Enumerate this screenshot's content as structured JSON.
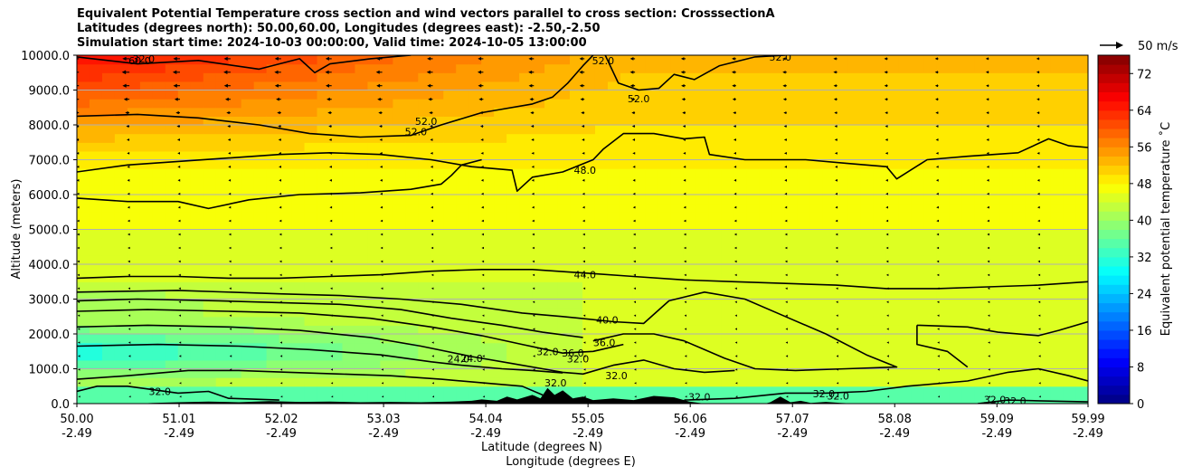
{
  "chart_data": {
    "type": "heatmap",
    "title_lines": [
      "Equivalent Potential Temperature cross section and wind vectors parallel to cross section: CrosssectionA",
      "Latitudes (degrees north): 50.00,60.00, Longitudes (degrees east): -2.50,-2.50",
      "Simulation start time: 2024-10-03 00:00:00, Valid time: 2024-10-05 13:00:00"
    ],
    "ylabel": "Altitude (meters)",
    "xlabel_1": "Latitude (degrees N)",
    "xlabel_2": "Longitude (degrees E)",
    "ylim": [
      0,
      10000
    ],
    "yticks": [
      0,
      1000,
      2000,
      3000,
      4000,
      5000,
      6000,
      7000,
      8000,
      9000,
      10000
    ],
    "ytick_labels": [
      "0.0",
      "1000.0",
      "2000.0",
      "3000.0",
      "4000.0",
      "5000.0",
      "6000.0",
      "7000.0",
      "8000.0",
      "9000.0",
      "10000.0"
    ],
    "xlim": [
      50.0,
      59.99
    ],
    "xticks": [
      {
        "lat": "50.00",
        "lon": "-2.49"
      },
      {
        "lat": "51.01",
        "lon": "-2.49"
      },
      {
        "lat": "52.02",
        "lon": "-2.49"
      },
      {
        "lat": "53.03",
        "lon": "-2.49"
      },
      {
        "lat": "54.04",
        "lon": "-2.49"
      },
      {
        "lat": "55.05",
        "lon": "-2.49"
      },
      {
        "lat": "56.06",
        "lon": "-2.49"
      },
      {
        "lat": "57.07",
        "lon": "-2.49"
      },
      {
        "lat": "58.08",
        "lon": "-2.49"
      },
      {
        "lat": "59.09",
        "lon": "-2.49"
      },
      {
        "lat": "59.99",
        "lon": "-2.49"
      }
    ],
    "grid": "horizontal",
    "colorbar": {
      "label": "Equivalent potential temperature ˚C",
      "range": [
        0,
        76
      ],
      "ticks": [
        0,
        8,
        16,
        24,
        32,
        40,
        48,
        56,
        64,
        72
      ],
      "colormap": "jet"
    },
    "quiver_key": {
      "label": "50 m/s",
      "speed": 50
    },
    "contour_labels": [
      {
        "text": "60.0",
        "lat": 50.62,
        "alt": 9850
      },
      {
        "text": "52.0",
        "lat": 55.2,
        "alt": 9850
      },
      {
        "text": "52.0",
        "lat": 56.95,
        "alt": 9950
      },
      {
        "text": "52.0",
        "lat": 55.55,
        "alt": 8750
      },
      {
        "text": "52.0",
        "lat": 53.45,
        "alt": 8100
      },
      {
        "text": "52.0",
        "lat": 53.35,
        "alt": 7800
      },
      {
        "text": "48.0",
        "lat": 55.02,
        "alt": 6700
      },
      {
        "text": "44.0",
        "lat": 55.02,
        "alt": 3700
      },
      {
        "text": "40.0",
        "lat": 55.24,
        "alt": 2400
      },
      {
        "text": "36.0",
        "lat": 55.21,
        "alt": 1750
      },
      {
        "text": "36.0",
        "lat": 54.9,
        "alt": 1450
      },
      {
        "text": "32.0",
        "lat": 54.65,
        "alt": 1500
      },
      {
        "text": "32.0",
        "lat": 54.95,
        "alt": 1280
      },
      {
        "text": "32.0",
        "lat": 55.33,
        "alt": 800
      },
      {
        "text": "24.0",
        "lat": 53.77,
        "alt": 1280
      },
      {
        "text": "24.0",
        "lat": 53.9,
        "alt": 1300
      },
      {
        "text": "32.0",
        "lat": 50.82,
        "alt": 350
      },
      {
        "text": "32.0",
        "lat": 54.73,
        "alt": 600
      },
      {
        "text": "32.0",
        "lat": 56.15,
        "alt": 200
      },
      {
        "text": "32.0",
        "lat": 57.38,
        "alt": 280
      },
      {
        "text": "32.0",
        "lat": 57.52,
        "alt": 220
      },
      {
        "text": "32.0",
        "lat": 59.07,
        "alt": 120
      },
      {
        "text": "32.0",
        "lat": 59.27,
        "alt": 80
      },
      {
        "text": "32.0",
        "lat": 50.66,
        "alt": 9900
      }
    ],
    "colors": {
      "contour": "#000000",
      "grid": "#b0b0b0",
      "terrain": "#000000"
    }
  }
}
